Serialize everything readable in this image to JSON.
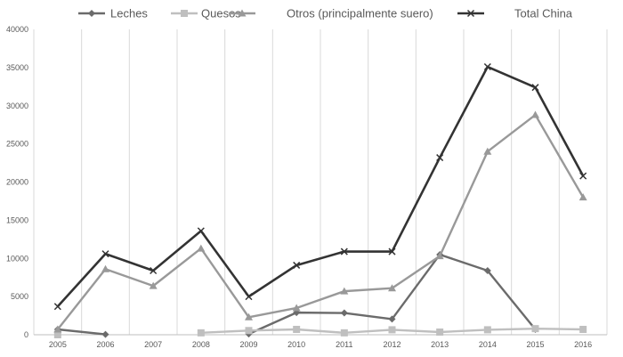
{
  "chart_data": {
    "type": "line",
    "title": "",
    "xlabel": "",
    "ylabel": "",
    "categories": [
      "2005",
      "2006",
      "2007",
      "2008",
      "2009",
      "2010",
      "2011",
      "2012",
      "2013",
      "2014",
      "2015",
      "2016"
    ],
    "ylim": [
      0,
      40000
    ],
    "yticks": [
      0,
      5000,
      10000,
      15000,
      20000,
      25000,
      30000,
      35000,
      40000
    ],
    "ytick_labels": [
      "0",
      "5000",
      "10000",
      "15000",
      "20000",
      "25000",
      "30000",
      "35000",
      "40000"
    ],
    "grid": {
      "vertical": true,
      "horizontal": false
    },
    "legend_position": "top",
    "series": [
      {
        "name": "Leches",
        "color": "#6b6b6b",
        "marker": "diamond",
        "values": [
          700,
          50,
          null,
          null,
          100,
          2900,
          2850,
          2050,
          10500,
          8400,
          700,
          null
        ]
      },
      {
        "name": "Quesos",
        "color": "#bfbfbf",
        "marker": "square",
        "values": [
          0,
          null,
          null,
          250,
          550,
          700,
          250,
          650,
          350,
          650,
          800,
          700
        ]
      },
      {
        "name": "Otros (principalmente suero)",
        "color": "#999999",
        "marker": "triangle",
        "values": [
          700,
          8600,
          6400,
          11300,
          2300,
          3500,
          5700,
          6100,
          10300,
          24000,
          28800,
          18000
        ]
      },
      {
        "name": "Total China",
        "color": "#333333",
        "marker": "x",
        "values": [
          3700,
          10600,
          8400,
          13600,
          5000,
          9100,
          10900,
          10900,
          23200,
          35100,
          32400,
          20800
        ]
      }
    ]
  }
}
